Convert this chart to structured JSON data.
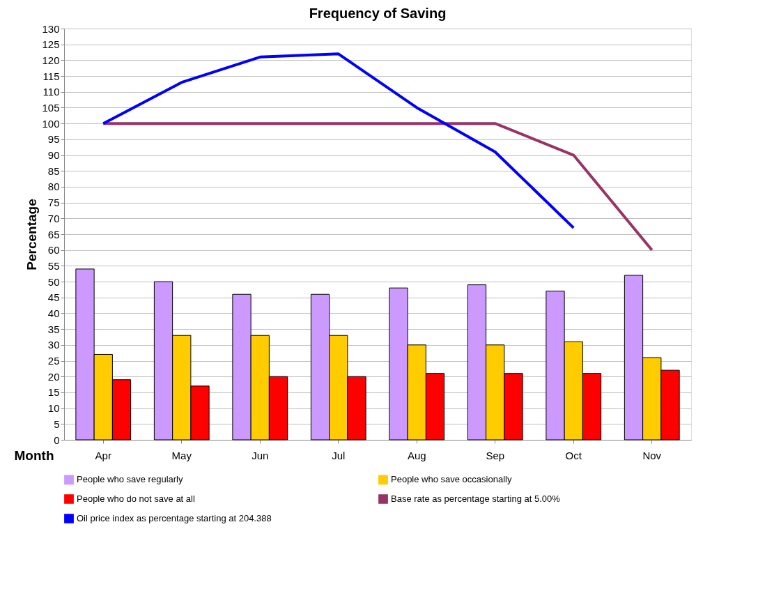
{
  "chart_data": {
    "type": "bar",
    "title": "Frequency of Saving",
    "xlabel": "Month",
    "ylabel": "Percentage",
    "categories": [
      "Apr",
      "May",
      "Jun",
      "Jul",
      "Aug",
      "Sep",
      "Oct",
      "Nov"
    ],
    "series": [
      {
        "name": "People who save regularly",
        "color": "#cc99ff",
        "values": [
          54,
          50,
          46,
          46,
          48,
          49,
          47,
          52
        ]
      },
      {
        "name": "People who save occasionally",
        "color": "#ffcc00",
        "values": [
          27,
          33,
          33,
          33,
          30,
          30,
          31,
          26
        ]
      },
      {
        "name": "People who do not save at all",
        "color": "#ff0000",
        "values": [
          19,
          17,
          20,
          20,
          21,
          21,
          21,
          22
        ]
      },
      {
        "name": "Base rate as percentage starting at 5.00%",
        "type": "line",
        "color": "#993366",
        "values": [
          100,
          100,
          100,
          100,
          100,
          100,
          90,
          60
        ]
      },
      {
        "name": "Oil price index as percentage starting at 204.388",
        "type": "line",
        "color": "#0000ff",
        "values": [
          100,
          113,
          121,
          122,
          105,
          91,
          67,
          null
        ]
      }
    ],
    "ylim": [
      0,
      130
    ],
    "yticks": [
      0,
      5,
      10,
      15,
      20,
      25,
      30,
      35,
      40,
      45,
      50,
      55,
      60,
      65,
      70,
      75,
      80,
      85,
      90,
      95,
      100,
      105,
      110,
      115,
      120,
      125,
      130
    ],
    "grid": "y",
    "legend": "bottom",
    "marker": "none",
    "line_style": "solid"
  }
}
